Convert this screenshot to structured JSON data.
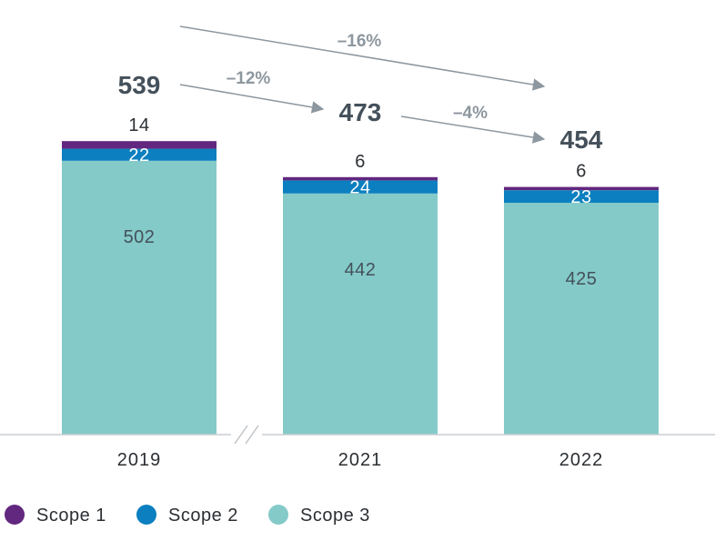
{
  "chart_data": {
    "type": "bar",
    "stacked": true,
    "categories": [
      "2019",
      "2021",
      "2022"
    ],
    "series": [
      {
        "name": "Scope 1",
        "values": [
          14,
          6,
          6
        ],
        "color": "#62277f"
      },
      {
        "name": "Scope 2",
        "values": [
          22,
          24,
          23
        ],
        "color": "#0b7fbf"
      },
      {
        "name": "Scope 3",
        "values": [
          502,
          442,
          425
        ],
        "color": "#84cac8"
      }
    ],
    "segment_labels": [
      [
        "14",
        "22",
        "502"
      ],
      [
        "6",
        "24",
        "442"
      ],
      [
        "6",
        "23",
        "425"
      ]
    ],
    "totals": [
      "539",
      "473",
      "454"
    ],
    "changes": [
      {
        "from": "2019",
        "to": "2021",
        "label": "–12%"
      },
      {
        "from": "2021",
        "to": "2022",
        "label": "–4%"
      },
      {
        "from": "2019",
        "to": "2022",
        "label": "–16%"
      }
    ],
    "axis_break_between": [
      "2019",
      "2021"
    ],
    "ylim": [
      0,
      560
    ],
    "legend_position": "bottom-left",
    "grid": false,
    "title": "",
    "xlabel": "",
    "ylabel": ""
  }
}
